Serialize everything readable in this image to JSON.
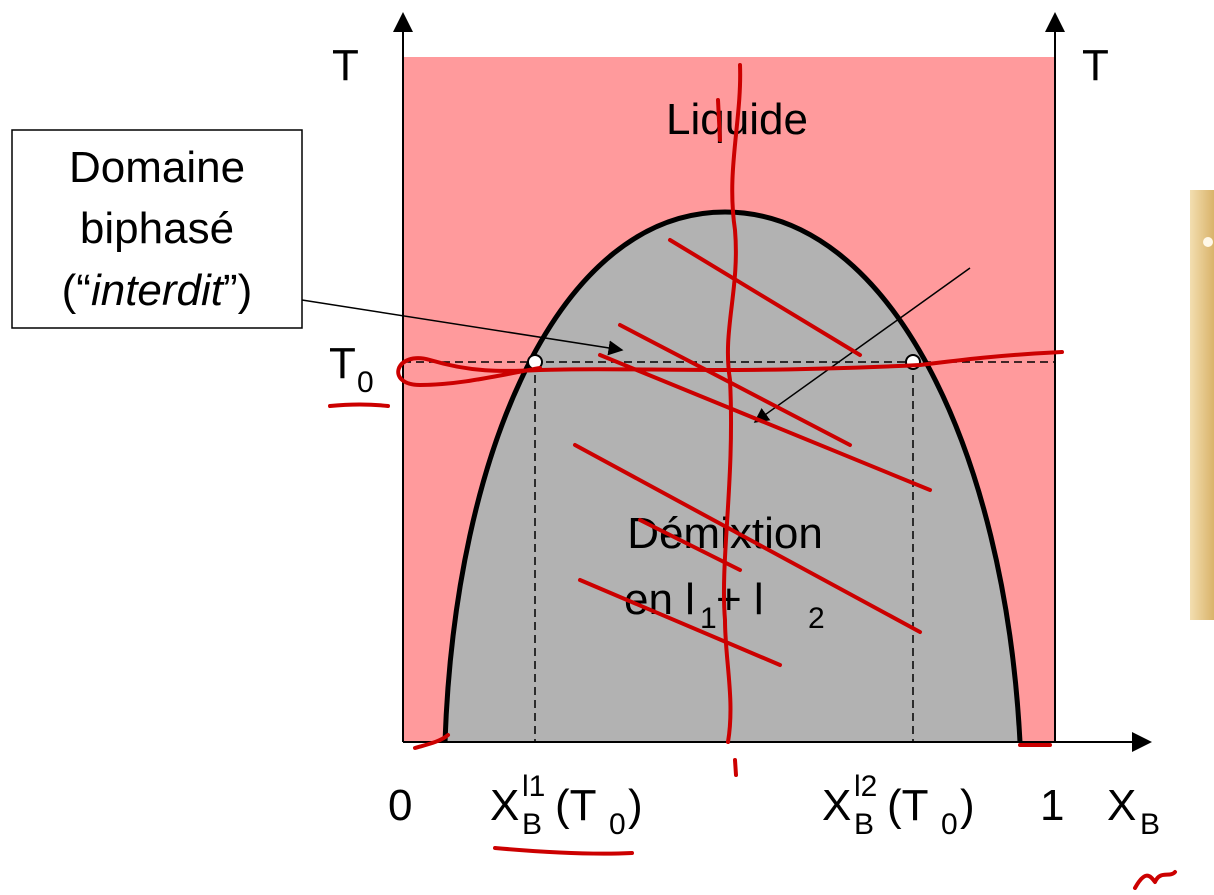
{
  "axes": {
    "left_label": "T",
    "right_label": "T",
    "origin_label": "0",
    "end_label": "1",
    "x_label": {
      "main": "X",
      "sub": "B"
    }
  },
  "t0": {
    "main": "T",
    "sub": "0"
  },
  "x_l1": {
    "main": "X",
    "sup": "l1",
    "sub": "B",
    "open": "(T",
    "arg_sub": "0",
    "close": ")"
  },
  "x_l2": {
    "main": "X",
    "sup": "l2",
    "sub": "B",
    "open": "(T",
    "arg_sub": "0",
    "close": ")"
  },
  "regions": {
    "liquid": "Liquide",
    "demix_line1": "Démixtion",
    "demix_line2": {
      "a": "en l",
      "a_sub": "1",
      "b": " + l",
      "b_sub": "2"
    }
  },
  "callout": {
    "line1": "Domaine",
    "line2": "biphasé",
    "line3": {
      "open": "(“",
      "italic": "interdit",
      "close": "”)"
    }
  }
}
